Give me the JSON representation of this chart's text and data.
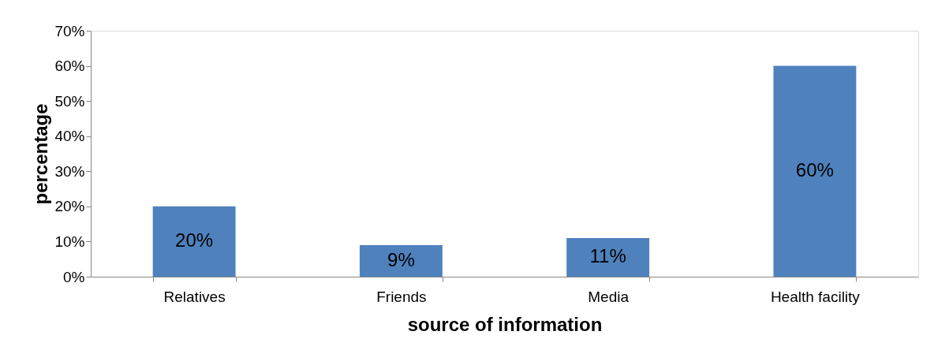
{
  "chart_data": {
    "type": "bar",
    "xlabel": "source of information",
    "ylabel": "percentage",
    "categories": [
      "Relatives",
      "Friends",
      "Media",
      "Health facility"
    ],
    "values": [
      20,
      9,
      11,
      60
    ],
    "color": "#4f81bd",
    "value_labels": [
      "20%",
      "9%",
      "11%",
      "60%"
    ],
    "ylim": [
      0,
      70
    ],
    "yticks": [
      {
        "value": 0,
        "label": "0%"
      },
      {
        "value": 10,
        "label": "10%"
      },
      {
        "value": 20,
        "label": "20%"
      },
      {
        "value": 30,
        "label": "30%"
      },
      {
        "value": 40,
        "label": "40%"
      },
      {
        "value": 50,
        "label": "50%"
      },
      {
        "value": 60,
        "label": "60%"
      },
      {
        "value": 70,
        "label": "70%"
      }
    ],
    "grid": false
  }
}
